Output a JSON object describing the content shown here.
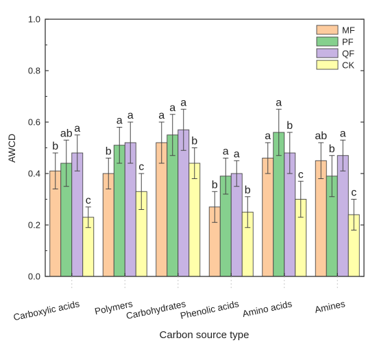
{
  "chart_data": {
    "type": "bar",
    "title": "",
    "xlabel": "Carbon source type",
    "ylabel": "AWCD",
    "ylim": [
      0,
      1.0
    ],
    "yticks": [
      "0.0",
      "0.2",
      "0.4",
      "0.6",
      "0.8",
      "1.0"
    ],
    "grid": false,
    "legend_position": "top-right",
    "categories": [
      "Carboxylic acids",
      "Polymers",
      "Carbohydrates",
      "Phenolic acids",
      "Amino acids",
      "Amines"
    ],
    "series": [
      {
        "name": "MF",
        "color": "#FDCB9E",
        "values": [
          0.41,
          0.4,
          0.52,
          0.27,
          0.46,
          0.45
        ],
        "errors": [
          0.07,
          0.06,
          0.08,
          0.06,
          0.06,
          0.07
        ],
        "letters": [
          "b",
          "b",
          "a",
          "b",
          "a",
          "ab"
        ]
      },
      {
        "name": "PF",
        "color": "#86D08E",
        "values": [
          0.44,
          0.51,
          0.55,
          0.39,
          0.56,
          0.39
        ],
        "errors": [
          0.09,
          0.07,
          0.08,
          0.07,
          0.09,
          0.08
        ]
      },
      {
        "name": "QF",
        "color": "#C7B3E3",
        "values": [
          0.48,
          0.52,
          0.57,
          0.4,
          0.48,
          0.47
        ],
        "errors": [
          0.07,
          0.08,
          0.08,
          0.05,
          0.08,
          0.06
        ]
      },
      {
        "name": "CK",
        "color": "#FFFFAA",
        "values": [
          0.23,
          0.33,
          0.44,
          0.25,
          0.3,
          0.24
        ],
        "errors": [
          0.04,
          0.07,
          0.06,
          0.06,
          0.07,
          0.06
        ]
      }
    ],
    "letters": [
      [
        "b",
        "ab",
        "a",
        "c"
      ],
      [
        "b",
        "a",
        "a",
        "c"
      ],
      [
        "a",
        "a",
        "a",
        "b"
      ],
      [
        "b",
        "a",
        "a",
        "b"
      ],
      [
        "a",
        "a",
        "b",
        "c"
      ],
      [
        "ab",
        "b",
        "a",
        "c"
      ]
    ]
  }
}
